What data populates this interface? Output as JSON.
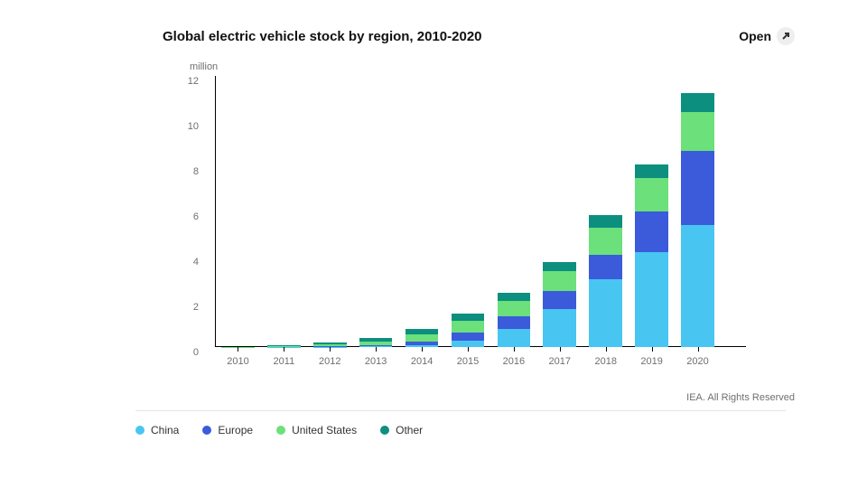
{
  "title": "Global electric vehicle stock by region, 2010-2020",
  "open_label": "Open",
  "unit_label": "million",
  "credit": "IEA. All Rights Reserved",
  "chart": {
    "type": "stacked-bar",
    "background_color": "#ffffff",
    "axis_color": "#000000",
    "text_color": "#6f6f6f",
    "y": {
      "min": 0,
      "max": 12,
      "ticks": [
        0,
        2,
        4,
        6,
        8,
        10,
        12
      ]
    },
    "categories": [
      "2010",
      "2011",
      "2012",
      "2013",
      "2014",
      "2015",
      "2016",
      "2017",
      "2018",
      "2019",
      "2020"
    ],
    "series": [
      {
        "key": "china",
        "label": "China",
        "color": "#49c5f2",
        "values": [
          0.0,
          0.01,
          0.02,
          0.03,
          0.1,
          0.3,
          0.8,
          1.7,
          3.0,
          4.2,
          5.4
        ]
      },
      {
        "key": "europe",
        "label": "Europe",
        "color": "#3b5bdb",
        "values": [
          0.0,
          0.01,
          0.02,
          0.05,
          0.15,
          0.35,
          0.55,
          0.8,
          1.1,
          1.8,
          3.3
        ]
      },
      {
        "key": "us",
        "label": "United States",
        "color": "#6be07b",
        "values": [
          0.01,
          0.02,
          0.08,
          0.18,
          0.3,
          0.5,
          0.7,
          0.85,
          1.2,
          1.5,
          1.7
        ]
      },
      {
        "key": "other",
        "label": "Other",
        "color": "#0c8f7f",
        "values": [
          0.01,
          0.04,
          0.1,
          0.15,
          0.25,
          0.35,
          0.35,
          0.4,
          0.55,
          0.6,
          0.85
        ]
      }
    ]
  }
}
